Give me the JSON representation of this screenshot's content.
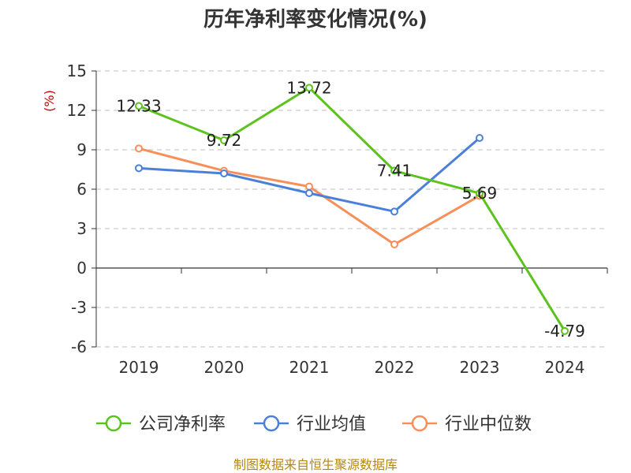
{
  "chart_data": {
    "type": "line",
    "title": "历年净利率变化情况(%)",
    "ylabel": "(%)",
    "categories": [
      "2019",
      "2020",
      "2021",
      "2022",
      "2023",
      "2024"
    ],
    "ylim": [
      -6,
      15
    ],
    "yticks": [
      -6,
      -3,
      0,
      3,
      6,
      9,
      12,
      15
    ],
    "grid": true,
    "legend_position": "bottom",
    "series": [
      {
        "name": "公司净利率",
        "color": "#5cc31e",
        "values": [
          12.33,
          9.72,
          13.72,
          7.41,
          5.69,
          -4.79
        ],
        "labels": [
          "12.33",
          "9.72",
          "13.72",
          "7.41",
          "5.69",
          "-4.79"
        ]
      },
      {
        "name": "行业均值",
        "color": "#4c80d8",
        "values": [
          7.6,
          7.2,
          5.7,
          4.3,
          9.9,
          null
        ]
      },
      {
        "name": "行业中位数",
        "color": "#f78f58",
        "values": [
          9.1,
          7.4,
          6.2,
          1.8,
          5.5,
          null
        ]
      }
    ]
  },
  "source_note": "制图数据来自恒生聚源数据库"
}
